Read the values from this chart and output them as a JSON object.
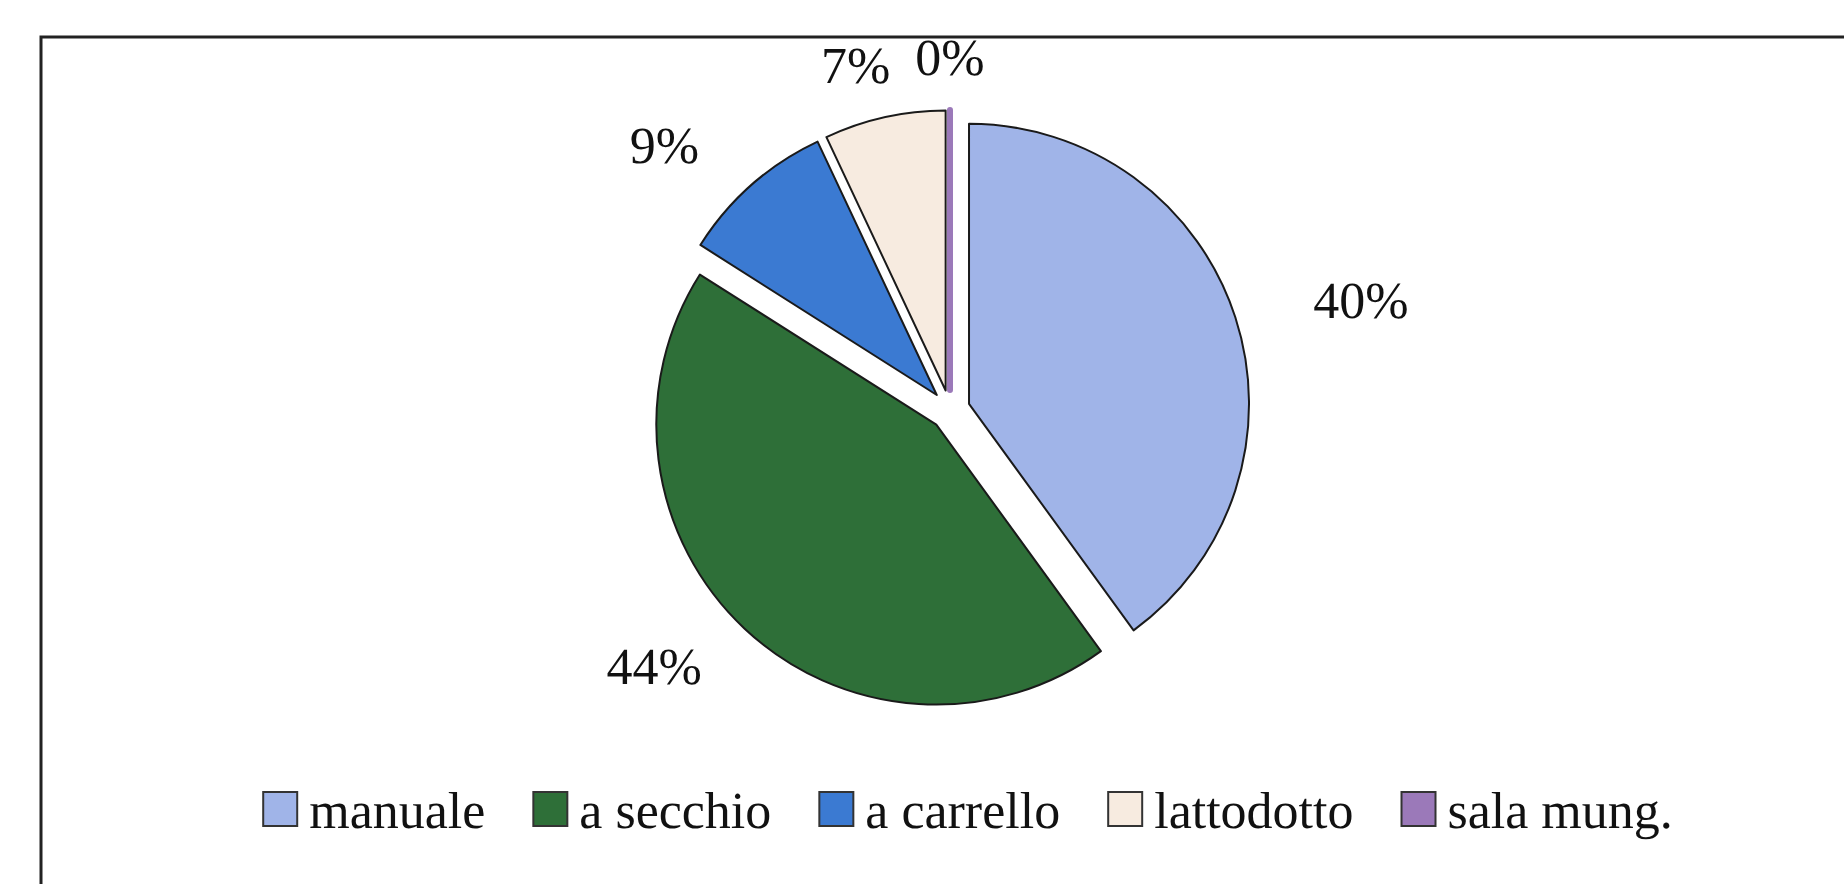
{
  "chart_data": {
    "type": "pie",
    "categories": [
      "manuale",
      "a secchio",
      "a carrello",
      "lattodotto",
      "sala mung."
    ],
    "values": [
      40,
      44,
      9,
      7,
      0
    ],
    "colors": [
      "#a0b4e8",
      "#2e6f38",
      "#3b7ad2",
      "#f7ebe0",
      "#9b79b9"
    ],
    "value_labels": [
      "40%",
      "44%",
      "9%",
      "7%",
      "0%"
    ],
    "legend": "bottom"
  }
}
